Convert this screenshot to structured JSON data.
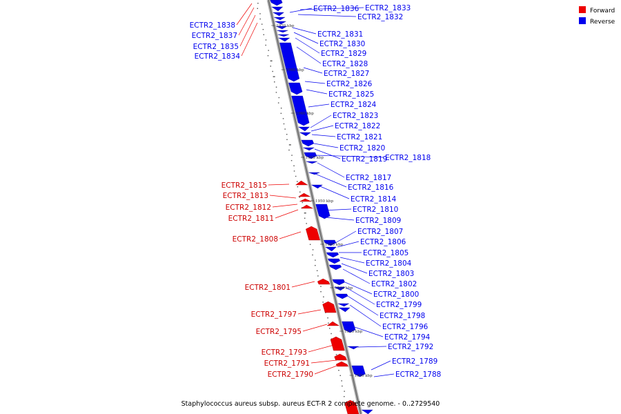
{
  "caption": "Staphylococcus aureus subsp. aureus ECT-R 2 complete genome. - 0..2729540",
  "legend": [
    {
      "label": "Forward",
      "color": "#ee0000"
    },
    {
      "label": "Reverse",
      "color": "#0000ee"
    }
  ],
  "colors": {
    "forward": "#ee0000",
    "reverse": "#0000ee",
    "backbone": "#777777"
  },
  "ticks": [
    "1970 kbp",
    "1965 kbp",
    "1960 kbp",
    "1955 kbp",
    "1950 kbp",
    "1945 kbp",
    "1940 kbp",
    "1935 kbp",
    "1930 kbp"
  ],
  "reverse_genes": [
    "ECTR2_1836",
    "ECTR2_1833",
    "ECTR2_1832",
    "ECTR2_1831",
    "ECTR2_1830",
    "ECTR2_1829",
    "ECTR2_1828",
    "ECTR2_1827",
    "ECTR2_1826",
    "ECTR2_1825",
    "ECTR2_1824",
    "ECTR2_1823",
    "ECTR2_1822",
    "ECTR2_1821",
    "ECTR2_1820",
    "ECTR2_1819",
    "ECTR2_1818",
    "ECTR2_1817",
    "ECTR2_1816",
    "ECTR2_1814",
    "ECTR2_1810",
    "ECTR2_1809",
    "ECTR2_1807",
    "ECTR2_1806",
    "ECTR2_1805",
    "ECTR2_1804",
    "ECTR2_1803",
    "ECTR2_1802",
    "ECTR2_1800",
    "ECTR2_1799",
    "ECTR2_1798",
    "ECTR2_1796",
    "ECTR2_1794",
    "ECTR2_1792",
    "ECTR2_1789",
    "ECTR2_1788"
  ],
  "forward_genes": [
    "ECTR2_1838",
    "ECTR2_1837",
    "ECTR2_1835",
    "ECTR2_1834",
    "ECTR2_1815",
    "ECTR2_1813",
    "ECTR2_1812",
    "ECTR2_1811",
    "ECTR2_1808",
    "ECTR2_1801",
    "ECTR2_1797",
    "ECTR2_1795",
    "ECTR2_1793",
    "ECTR2_1791",
    "ECTR2_1790"
  ]
}
